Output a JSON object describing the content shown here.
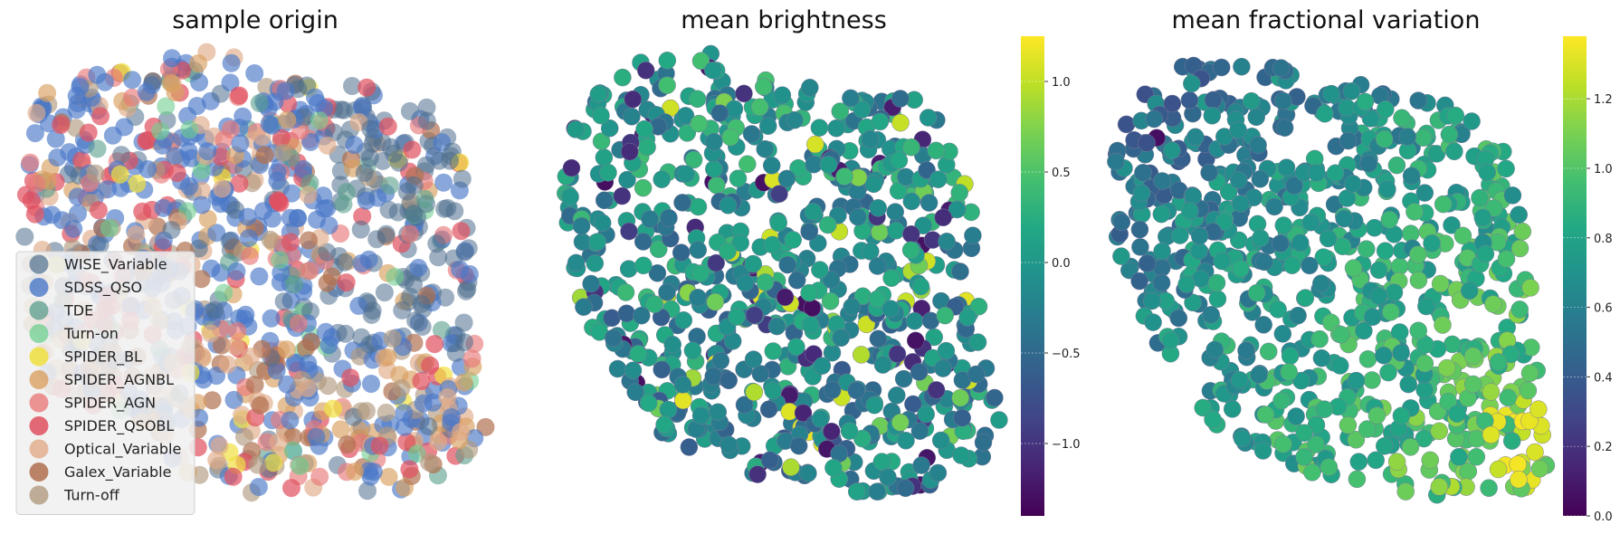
{
  "chart_data": [
    {
      "type": "scatter",
      "title": "sample origin",
      "xlabel": "",
      "ylabel": "",
      "grid": false,
      "axes_visible": false,
      "legend_position": "lower-left",
      "series": [
        {
          "name": "WISE_Variable",
          "color": "#4d6e8c",
          "alpha": 0.55
        },
        {
          "name": "SDSS_QSO",
          "color": "#4a78c8",
          "alpha": 0.65
        },
        {
          "name": "TDE",
          "color": "#5a9e8c",
          "alpha": 0.6
        },
        {
          "name": "Turn-on",
          "color": "#6fcf8f",
          "alpha": 0.6
        },
        {
          "name": "SPIDER_BL",
          "color": "#f0e040",
          "alpha": 0.7
        },
        {
          "name": "SPIDER_AGNBL",
          "color": "#d9a060",
          "alpha": 0.65
        },
        {
          "name": "SPIDER_AGN",
          "color": "#e87a7a",
          "alpha": 0.65
        },
        {
          "name": "SPIDER_QSOBL",
          "color": "#e05060",
          "alpha": 0.7
        },
        {
          "name": "Optical_Variable",
          "color": "#e0aa88",
          "alpha": 0.65
        },
        {
          "name": "Galex_Variable",
          "color": "#b07050",
          "alpha": 0.7
        },
        {
          "name": "Turn-off",
          "color": "#b09a80",
          "alpha": 0.65
        }
      ]
    },
    {
      "type": "scatter",
      "title": "mean brightness",
      "xlabel": "",
      "ylabel": "",
      "grid": false,
      "axes_visible": false,
      "colormap": "viridis",
      "colorbar": {
        "min": -1.4,
        "max": 1.25,
        "ticks": [
          1.0,
          0.5,
          0.0,
          -0.5,
          -1.0
        ],
        "tick_labels": [
          "1.0",
          "0.5",
          "0.0",
          "−0.5",
          "−1.0"
        ]
      }
    },
    {
      "type": "scatter",
      "title": "mean fractional variation",
      "xlabel": "",
      "ylabel": "",
      "grid": false,
      "axes_visible": false,
      "colormap": "viridis",
      "colorbar": {
        "min": 0.0,
        "max": 1.38,
        "ticks": [
          1.2,
          1.0,
          0.8,
          0.6,
          0.4,
          0.2,
          0.0
        ],
        "tick_labels": [
          "1.2",
          "1.0",
          "0.8",
          "0.6",
          "0.4",
          "0.2",
          "0.0"
        ]
      }
    }
  ]
}
